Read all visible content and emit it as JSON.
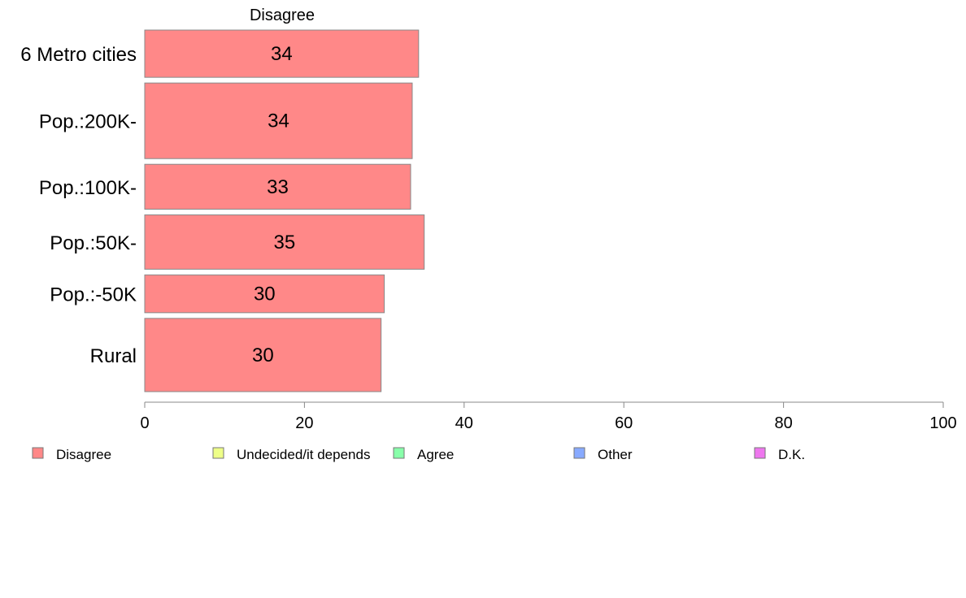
{
  "chart_data": {
    "type": "bar",
    "orientation": "horizontal",
    "title": "Disagree",
    "categories": [
      "6 Metro cities",
      "Pop.:200K-",
      "Pop.:100K-",
      "Pop.:50K-",
      "Pop.:-50K",
      "Rural"
    ],
    "series": [
      {
        "name": "Disagree",
        "values": [
          34.3,
          33.5,
          33.3,
          35.0,
          30.0,
          29.6
        ],
        "labels": [
          "34",
          "34",
          "33",
          "35",
          "30",
          "30"
        ],
        "color": "#ff8888"
      }
    ],
    "row_weights": [
      1.0,
      1.6,
      0.95,
      1.15,
      0.8,
      1.55
    ],
    "xlim": [
      0,
      100
    ],
    "xticks": [
      0,
      20,
      40,
      60,
      80,
      100
    ],
    "grid": false,
    "legend": {
      "position": "bottom",
      "items": [
        {
          "label": "Disagree",
          "color": "#ff8888"
        },
        {
          "label": "Undecided/it depends",
          "color": "#eeff88"
        },
        {
          "label": "Agree",
          "color": "#88ffaa"
        },
        {
          "label": "Other",
          "color": "#88aaff"
        },
        {
          "label": "D.K.",
          "color": "#ee77ee"
        }
      ]
    }
  }
}
